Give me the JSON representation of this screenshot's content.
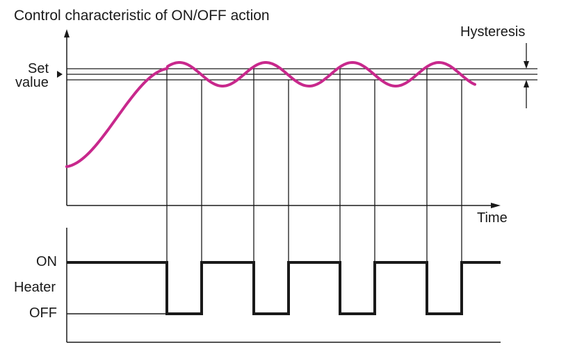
{
  "title": "Control characteristic of ON/OFF action",
  "labels": {
    "set_value_line1": "Set",
    "set_value_line2": "value",
    "hysteresis": "Hysteresis",
    "time": "Time",
    "on": "ON",
    "heater": "Heater",
    "off": "OFF"
  },
  "colors": {
    "temperature_curve": "#c8288c",
    "lines": "#1a1a1a"
  },
  "diagram": {
    "temperature_peaks": 4,
    "heater_off_periods": 4
  }
}
